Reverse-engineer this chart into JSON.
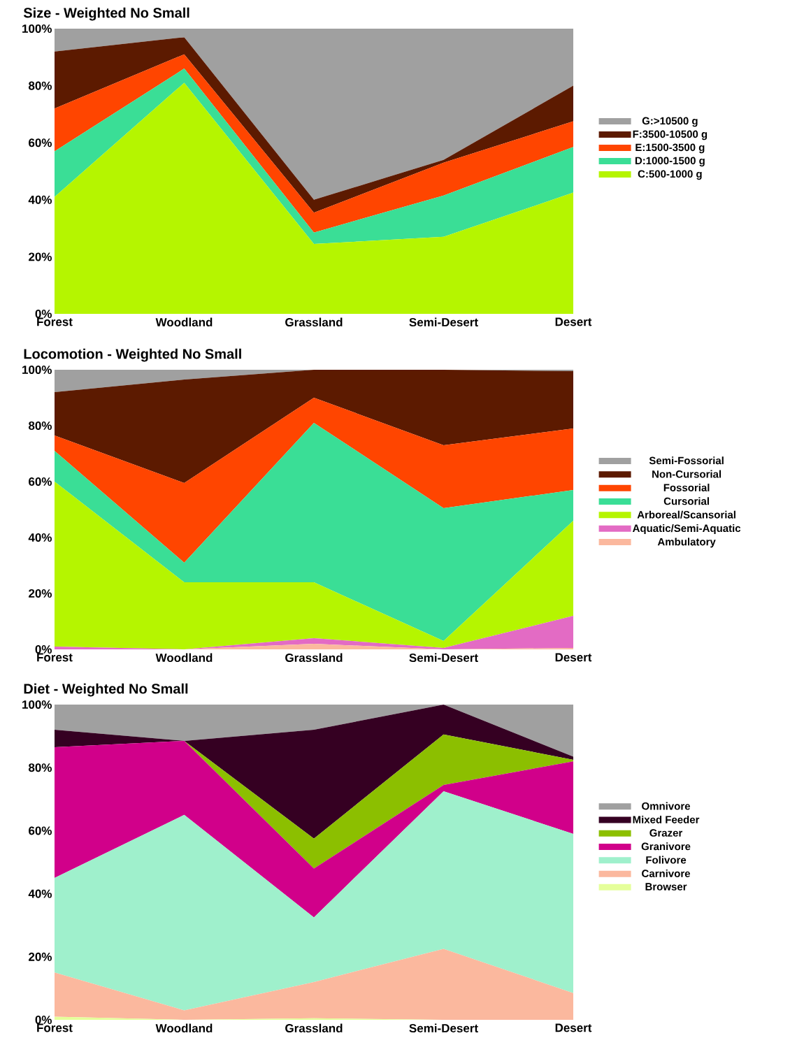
{
  "chart_data": [
    {
      "type": "area",
      "title": "Size - Weighted No Small",
      "stacked": true,
      "legend": "right",
      "categories": [
        "Forest",
        "Woodland",
        "Grassland",
        "Semi-Desert",
        "Desert"
      ],
      "ylim": [
        0,
        100
      ],
      "yticks": [
        {
          "value": 0,
          "label": "0%"
        },
        {
          "value": 20,
          "label": "20%"
        },
        {
          "value": 40,
          "label": "40%"
        },
        {
          "value": 60,
          "label": "60%"
        },
        {
          "value": 80,
          "label": "80%"
        },
        {
          "value": 100,
          "label": "100%"
        }
      ],
      "series": [
        {
          "name": "C:500-1000 g",
          "color": "#b5f500",
          "values": [
            41,
            81,
            24.5,
            27,
            42.5
          ]
        },
        {
          "name": "D:1000-1500 g",
          "color": "#3ade96",
          "values": [
            16,
            5,
            4,
            14.5,
            16
          ]
        },
        {
          "name": "E:1500-3500 g",
          "color": "#ff4500",
          "values": [
            15,
            5,
            7,
            11.5,
            9
          ]
        },
        {
          "name": "F:3500-10500 g",
          "color": "#5c1a00",
          "values": [
            20,
            6,
            4.5,
            1,
            12.5
          ]
        },
        {
          "name": "G:>10500 g",
          "color": "#a0a0a0",
          "values": [
            8,
            3,
            60,
            46,
            20
          ]
        }
      ]
    },
    {
      "type": "area",
      "title": "Locomotion - Weighted No Small",
      "stacked": true,
      "legend": "right",
      "categories": [
        "Forest",
        "Woodland",
        "Grassland",
        "Semi-Desert",
        "Desert"
      ],
      "ylim": [
        0,
        100
      ],
      "yticks": [
        {
          "value": 0,
          "label": "0%"
        },
        {
          "value": 20,
          "label": "20%"
        },
        {
          "value": 40,
          "label": "40%"
        },
        {
          "value": 60,
          "label": "60%"
        },
        {
          "value": 80,
          "label": "80%"
        },
        {
          "value": 100,
          "label": "100%"
        }
      ],
      "series": [
        {
          "name": "Ambulatory",
          "color": "#fbb89e",
          "values": [
            0,
            0,
            2,
            0,
            0.5
          ]
        },
        {
          "name": "Aquatic/Semi-Aquatic",
          "color": "#e36bc4",
          "values": [
            1,
            0,
            2,
            0.5,
            11.5
          ]
        },
        {
          "name": "Arboreal/Scansorial",
          "color": "#b5f500",
          "values": [
            59,
            24,
            20,
            2.5,
            34
          ]
        },
        {
          "name": "Cursorial",
          "color": "#3ade96",
          "values": [
            11,
            7,
            57,
            47.5,
            11
          ]
        },
        {
          "name": "Fossorial",
          "color": "#ff4500",
          "values": [
            5.5,
            28.5,
            9,
            22.5,
            22
          ]
        },
        {
          "name": "Non-Cursorial",
          "color": "#5c1a00",
          "values": [
            15.5,
            37,
            10,
            27,
            20.5
          ]
        },
        {
          "name": "Semi-Fossorial",
          "color": "#a0a0a0",
          "values": [
            8,
            3.5,
            0,
            0,
            0.5
          ]
        }
      ]
    },
    {
      "type": "area",
      "title": "Diet - Weighted No Small",
      "stacked": true,
      "legend": "right",
      "categories": [
        "Forest",
        "Woodland",
        "Grassland",
        "Semi-Desert",
        "Desert"
      ],
      "ylim": [
        0,
        100
      ],
      "yticks": [
        {
          "value": 0,
          "label": "0%"
        },
        {
          "value": 20,
          "label": "20%"
        },
        {
          "value": 40,
          "label": "40%"
        },
        {
          "value": 60,
          "label": "60%"
        },
        {
          "value": 80,
          "label": "80%"
        },
        {
          "value": 100,
          "label": "100%"
        }
      ],
      "series": [
        {
          "name": "Browser",
          "color": "#e5ff9a",
          "values": [
            1,
            0,
            0.5,
            0,
            0
          ]
        },
        {
          "name": "Carnivore",
          "color": "#fbb89e",
          "values": [
            14,
            3,
            11.5,
            22.5,
            8.5
          ]
        },
        {
          "name": "Folivore",
          "color": "#9ff0cc",
          "values": [
            30,
            62,
            20.5,
            50,
            50.5
          ]
        },
        {
          "name": "Granivore",
          "color": "#d1008a",
          "values": [
            41.5,
            23.5,
            15.5,
            2,
            23
          ]
        },
        {
          "name": "Grazer",
          "color": "#8cbf00",
          "values": [
            0,
            0,
            9.5,
            16,
            0.5
          ]
        },
        {
          "name": "Mixed Feeder",
          "color": "#350022",
          "values": [
            5.5,
            0,
            34.5,
            9.5,
            1
          ]
        },
        {
          "name": "Omnivore",
          "color": "#a0a0a0",
          "values": [
            8,
            11.5,
            8,
            0,
            16.5
          ]
        }
      ]
    }
  ]
}
